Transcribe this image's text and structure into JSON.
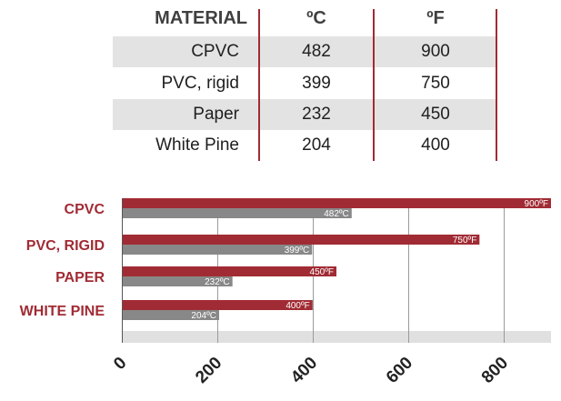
{
  "table": {
    "headers": [
      "MATERIAL",
      "ºC",
      "ºF"
    ],
    "rows": [
      {
        "material": "CPVC",
        "c": "482",
        "f": "900"
      },
      {
        "material": "PVC, rigid",
        "c": "399",
        "f": "750"
      },
      {
        "material": "Paper",
        "c": "232",
        "f": "450"
      },
      {
        "material": "White Pine",
        "c": "204",
        "f": "400"
      }
    ]
  },
  "chart_data": {
    "type": "bar",
    "orientation": "horizontal",
    "categories": [
      "CPVC",
      "PVC, RIGID",
      "PAPER",
      "WHITE PINE"
    ],
    "series": [
      {
        "values": [
          900,
          750,
          450,
          400
        ],
        "labels": [
          "900ºF",
          "750ºF",
          "450ºF",
          "400ºF"
        ],
        "color": "#a12b34"
      },
      {
        "values": [
          482,
          399,
          232,
          204
        ],
        "labels": [
          "482ºC",
          "399ºC",
          "232ºC",
          "204ºC"
        ],
        "color": "#888888"
      }
    ],
    "xlim": [
      0,
      900
    ],
    "xticks": [
      0,
      200,
      400,
      600,
      800
    ],
    "grid": true,
    "colors": {
      "accent": "#a12b34",
      "gray_bar": "#888888",
      "gridline": "#9a9a9a",
      "axis_band": "#e0e0e0",
      "row_shade": "#e3e3e3"
    }
  }
}
